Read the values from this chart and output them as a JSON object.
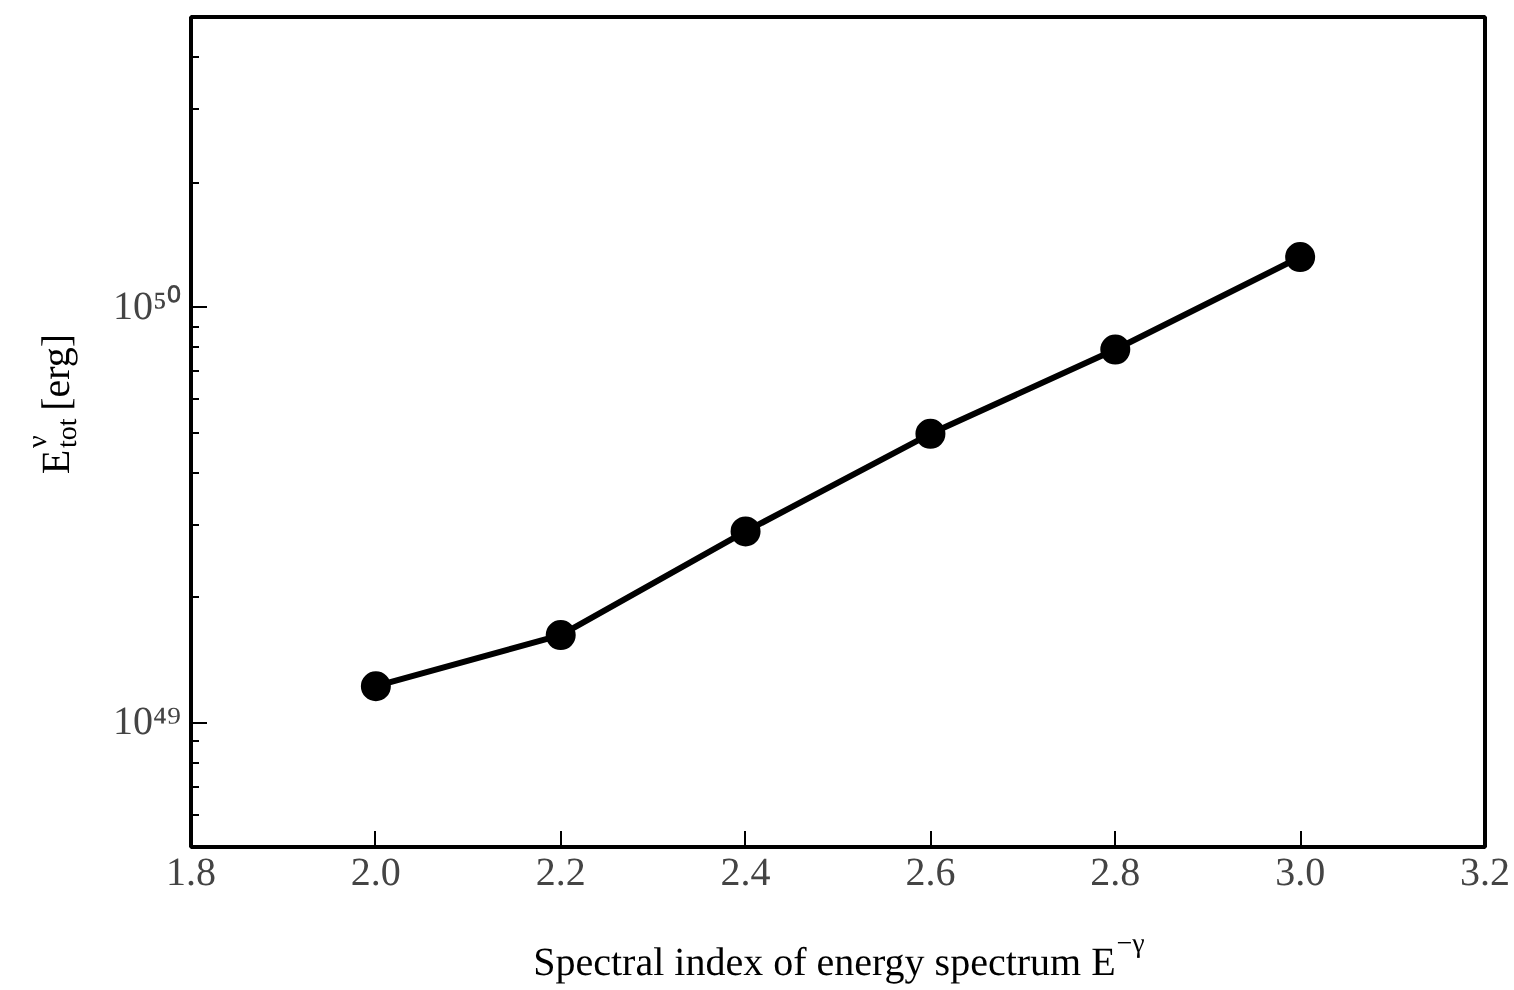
{
  "chart_data": {
    "type": "line",
    "xlabel": "Spectral index of energy spectrum E$^{−γ}$",
    "ylabel": "E$^{ν}$$_{tot}$ [erg]",
    "x": [
      2.0,
      2.2,
      2.4,
      2.6,
      2.8,
      3.0
    ],
    "series": [
      {
        "color": "#000000",
        "values": [
          1.22e+49,
          1.62e+49,
          2.88e+49,
          4.95e+49,
          7.9e+49,
          1.32e+50
        ]
      }
    ],
    "xlim": [
      1.8,
      3.2
    ],
    "xticks": [
      1.8,
      {
        "value": 2.0,
        "label": "2.0"
      },
      2.2,
      2.4,
      2.6,
      2.8,
      {
        "value": 3.0,
        "label": "3.0"
      },
      3.2
    ],
    "ylim": [
      5e+48,
      5e+50
    ],
    "yticks": [
      {
        "value": 1e+49,
        "label": "10⁴⁹"
      },
      {
        "value": 1e+50,
        "label": "10⁵⁰"
      }
    ],
    "log": "y",
    "grid": false,
    "marker": "circle",
    "line_style": "solid"
  }
}
